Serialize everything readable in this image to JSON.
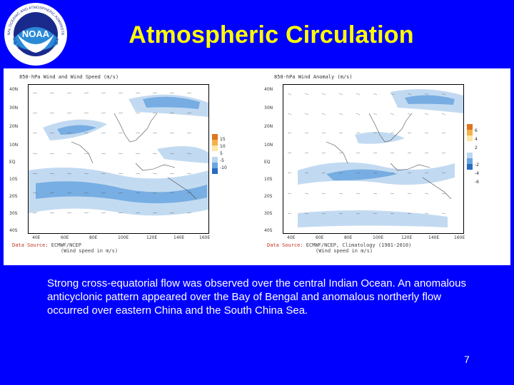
{
  "logo": {
    "center_text": "NOAA",
    "ring_text": "NATIONAL OCEANIC AND ATMOSPHERIC ADMINISTRATION",
    "ring_text_bottom": "U.S. DEPARTMENT OF COMMERCE"
  },
  "slide": {
    "title": "Atmospheric Circulation",
    "body": "Strong cross-equatorial flow was observed over the central Indian Ocean. An anomalous anticyclonic pattern appeared over the Bay of Bengal and anomalous northerly flow occurred over eastern China and the South China Sea.",
    "page_number": "7"
  },
  "figures": [
    {
      "header": "850-hPa Wind and Wind Speed (m/s)",
      "lat_labels": [
        "40N",
        "30N",
        "20N",
        "10N",
        "EQ",
        "10S",
        "20S",
        "30S",
        "40S"
      ],
      "lon_labels": [
        "40E",
        "60E",
        "80E",
        "100E",
        "120E",
        "140E",
        "160E"
      ],
      "colorbar_labels": [
        "15",
        "10",
        "5",
        "-5",
        "-10"
      ],
      "source_label": "Data Source:",
      "source_value": "ECMWF/NCEP",
      "source_note": "(Wind speed in m/s)"
    },
    {
      "header": "850-hPa Wind Anomaly (m/s)",
      "lat_labels": [
        "40N",
        "30N",
        "20N",
        "10N",
        "EQ",
        "10S",
        "20S",
        "30S",
        "40S"
      ],
      "lon_labels": [
        "40E",
        "60E",
        "80E",
        "100E",
        "120E",
        "140E",
        "160E"
      ],
      "colorbar_labels": [
        "6",
        "4",
        "2",
        "-2",
        "-4",
        "-6"
      ],
      "source_label": "Data Source:",
      "source_value": "ECMWF/NCEP, Climatology (1981-2010)",
      "source_note": "(Wind speed in m/s)"
    }
  ]
}
